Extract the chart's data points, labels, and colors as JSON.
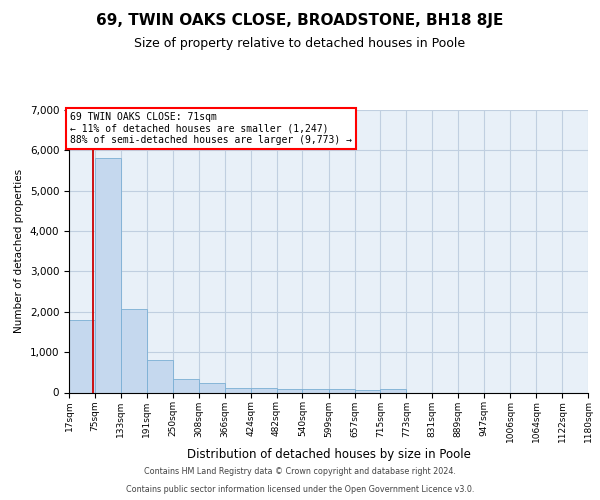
{
  "title": "69, TWIN OAKS CLOSE, BROADSTONE, BH18 8JE",
  "subtitle": "Size of property relative to detached houses in Poole",
  "xlabel": "Distribution of detached houses by size in Poole",
  "ylabel": "Number of detached properties",
  "bin_edges": [
    17,
    75,
    133,
    191,
    250,
    308,
    366,
    424,
    482,
    540,
    599,
    657,
    715,
    773,
    831,
    889,
    947,
    1006,
    1064,
    1122,
    1180
  ],
  "bar_heights": [
    1800,
    5800,
    2080,
    800,
    340,
    230,
    115,
    100,
    80,
    80,
    80,
    55,
    80,
    0,
    0,
    0,
    0,
    0,
    0,
    0
  ],
  "bar_color": "#c5d8ee",
  "bar_edgecolor": "#7bafd4",
  "grid_color": "#c0cfe0",
  "background_color": "#e8f0f8",
  "vline_x": 71,
  "vline_color": "#cc0000",
  "annotation_text": "69 TWIN OAKS CLOSE: 71sqm\n← 11% of detached houses are smaller (1,247)\n88% of semi-detached houses are larger (9,773) →",
  "ylim": [
    0,
    7000
  ],
  "yticks": [
    0,
    1000,
    2000,
    3000,
    4000,
    5000,
    6000,
    7000
  ],
  "footer_line1": "Contains HM Land Registry data © Crown copyright and database right 2024.",
  "footer_line2": "Contains public sector information licensed under the Open Government Licence v3.0.",
  "title_fontsize": 11,
  "subtitle_fontsize": 9,
  "tick_labels": [
    "17sqm",
    "75sqm",
    "133sqm",
    "191sqm",
    "250sqm",
    "308sqm",
    "366sqm",
    "424sqm",
    "482sqm",
    "540sqm",
    "599sqm",
    "657sqm",
    "715sqm",
    "773sqm",
    "831sqm",
    "889sqm",
    "947sqm",
    "1006sqm",
    "1064sqm",
    "1122sqm",
    "1180sqm"
  ]
}
